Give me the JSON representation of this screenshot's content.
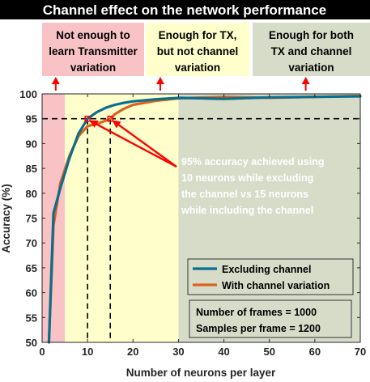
{
  "chart_data": {
    "type": "line",
    "title": "Channel effect on the network performance",
    "xlabel": "Number of neurons per layer",
    "ylabel": "Accuracy (%)",
    "xlim": [
      0,
      70
    ],
    "ylim": [
      50,
      100
    ],
    "xticks": [
      0,
      10,
      20,
      30,
      40,
      50,
      60,
      70
    ],
    "yticks": [
      50,
      55,
      60,
      65,
      70,
      75,
      80,
      85,
      90,
      95,
      100
    ],
    "grid": false,
    "zones": [
      {
        "lines": [
          "Not enough to",
          "learn Transmitter",
          "variation"
        ],
        "x_range": [
          0,
          5
        ],
        "color": "#f9c3c6",
        "arrow_x": 3
      },
      {
        "lines": [
          "Enough for TX,",
          "but not channel",
          "variation"
        ],
        "x_range": [
          5,
          30
        ],
        "color": "#ffffcc",
        "arrow_x": 26
      },
      {
        "lines": [
          "Enough for both",
          "TX and channel",
          "variation"
        ],
        "x_range": [
          30,
          70
        ],
        "color": "#d6dcc8",
        "arrow_x": 58
      }
    ],
    "series": [
      {
        "name": "Excluding channel",
        "color": "#0a6f8f",
        "x": [
          1.5,
          2.5,
          4,
          6,
          8,
          10,
          12,
          14,
          16,
          18,
          20,
          25,
          30,
          40,
          50,
          60,
          70
        ],
        "y": [
          50,
          76,
          81,
          87,
          92,
          95,
          96.3,
          97.2,
          97.8,
          98.2,
          98.5,
          98.9,
          99.2,
          99.0,
          99.3,
          99.4,
          99.5
        ]
      },
      {
        "name": "With channel variation",
        "color": "#d9621f",
        "x": [
          1.5,
          2.5,
          4,
          6,
          8,
          10,
          12,
          14,
          15,
          16,
          18,
          20,
          25,
          30,
          40,
          50,
          60,
          70
        ],
        "y": [
          50,
          73.5,
          82,
          87.5,
          91.5,
          93.5,
          94.0,
          94.6,
          95,
          95.9,
          97.0,
          97.8,
          98.6,
          99.1,
          99.4,
          99.2,
          99.4,
          99.6
        ]
      }
    ],
    "reference_lines": {
      "h": 95,
      "v": [
        10,
        15
      ]
    },
    "markers": [
      {
        "x": 10,
        "y": 95
      },
      {
        "x": 15,
        "y": 95
      }
    ],
    "annotation": {
      "lines": [
        "95% accuracy achieved using",
        "10 neurons while excluding",
        "the channel vs 15 neurons",
        "while including the channel"
      ],
      "color": "#ff0000"
    },
    "legend": {
      "placement": "lower-right"
    },
    "info_box": {
      "lines": [
        "Number of frames = 1000",
        "Samples per frame = 1200"
      ]
    }
  }
}
